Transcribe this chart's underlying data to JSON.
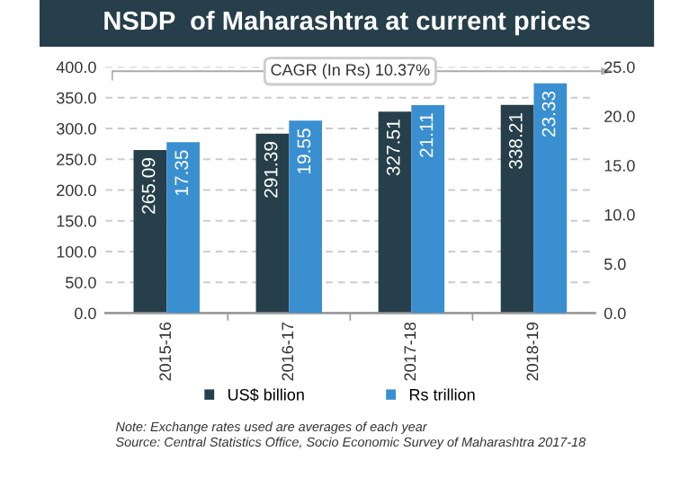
{
  "chart_data": {
    "type": "bar",
    "title": "NSDP  of Maharashtra at current prices",
    "categories": [
      "2015-16",
      "2016-17",
      "2017-18",
      "2018-19"
    ],
    "series": [
      {
        "name": "US$ billion",
        "color": "#263f4a",
        "values": [
          265.09,
          291.39,
          327.51,
          338.21
        ]
      },
      {
        "name": "Rs trillion",
        "color": "#3a8fd0",
        "values": [
          17.35,
          19.55,
          21.11,
          23.33
        ],
        "axis": "y2"
      }
    ],
    "ylim": [
      0,
      400
    ],
    "yticks": [
      {
        "value": 0,
        "label": "0.0"
      },
      {
        "value": 50,
        "label": "50.0"
      },
      {
        "value": 100,
        "label": "100.0"
      },
      {
        "value": 150,
        "label": "150.0"
      },
      {
        "value": 200,
        "label": "200.0"
      },
      {
        "value": 250,
        "label": "250.0"
      },
      {
        "value": 300,
        "label": "300.0"
      },
      {
        "value": 350,
        "label": "350.0"
      },
      {
        "value": 400,
        "label": "400.0"
      }
    ],
    "y2lim": [
      0,
      25
    ],
    "y2ticks": [
      {
        "value": 0,
        "label": "0.0"
      },
      {
        "value": 5,
        "label": "5.0"
      },
      {
        "value": 10,
        "label": "10.0"
      },
      {
        "value": 15,
        "label": "15.0"
      },
      {
        "value": 20,
        "label": "20.0"
      },
      {
        "value": 25,
        "label": "25.0"
      }
    ],
    "grid": "y",
    "legend": "bottom",
    "data_labels": true,
    "annotations": [
      "CAGR (In Rs) 10.37%",
      "Note: Exchange rates used are averages of each year",
      "Source: Central Statistics Office, Socio Economic Survey of Maharashtra 2017-18"
    ]
  }
}
